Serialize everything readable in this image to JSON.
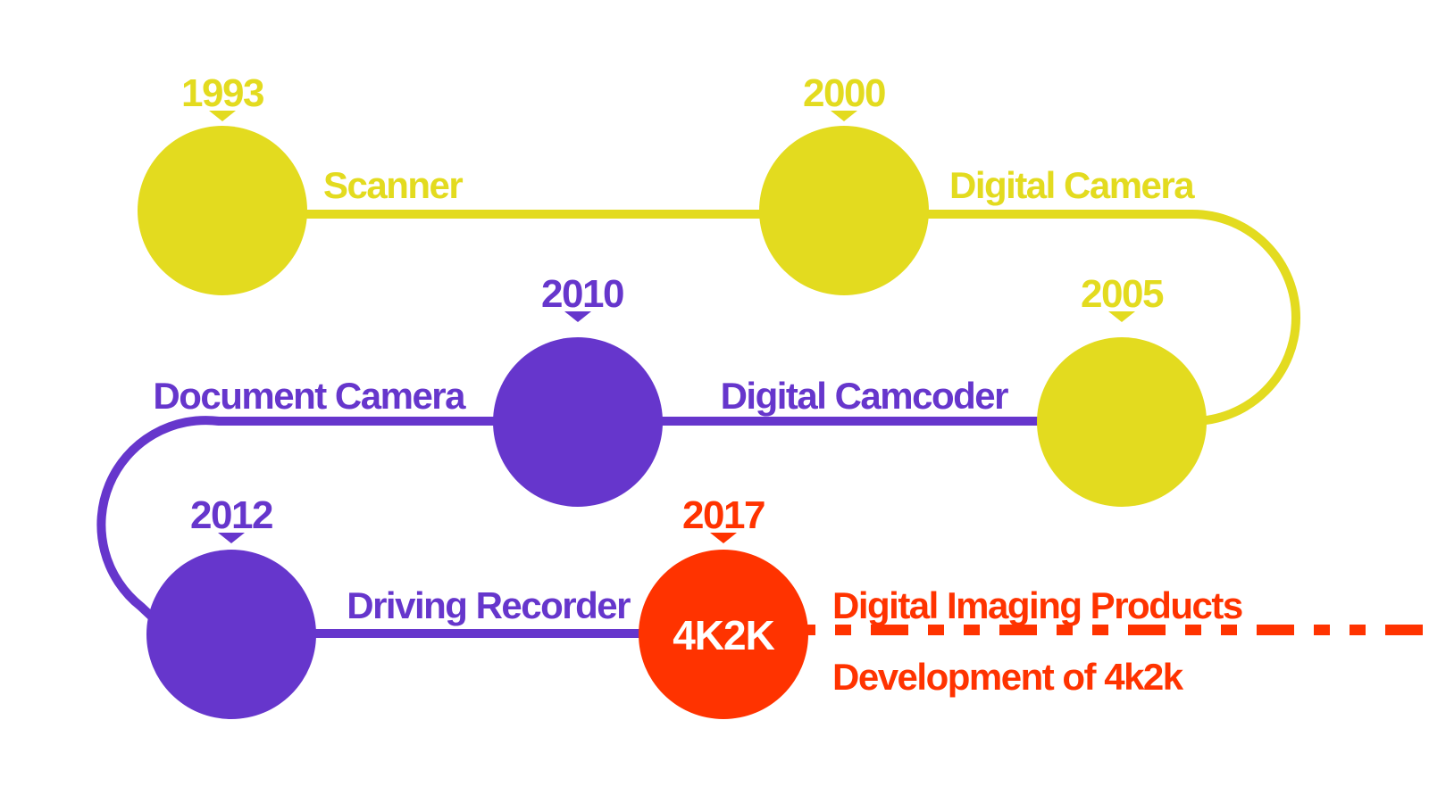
{
  "colors": {
    "yellow": "#E3DB1F",
    "purple": "#6636CC",
    "red": "#FF3300",
    "white": "#FFFFFF"
  },
  "milestones": [
    {
      "year": "1993",
      "label": "Scanner"
    },
    {
      "year": "2000",
      "label": "Digital Camera"
    },
    {
      "year": "2005",
      "label": "Digital Camcoder"
    },
    {
      "year": "2010",
      "label": "Document Camera"
    },
    {
      "year": "2012",
      "label": "Driving Recorder"
    },
    {
      "year": "2017",
      "label": "Digital Imaging Products",
      "sublabel": "Development of 4k2k",
      "circle_text": "4K2K"
    }
  ]
}
